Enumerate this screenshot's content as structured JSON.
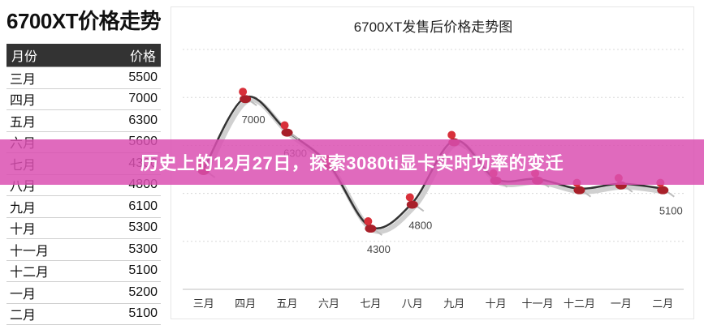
{
  "left": {
    "title": "6700XT价格走势",
    "table": {
      "headers": {
        "month": "月份",
        "price": "价格"
      },
      "rows": [
        {
          "month": "三月",
          "price": "5500"
        },
        {
          "month": "四月",
          "price": "7000"
        },
        {
          "month": "五月",
          "price": "6300"
        },
        {
          "month": "六月",
          "price": "5600"
        },
        {
          "month": "七月",
          "price": "4300"
        },
        {
          "month": "八月",
          "price": "4800"
        },
        {
          "month": "九月",
          "price": "6100"
        },
        {
          "month": "十月",
          "price": "5300"
        },
        {
          "month": "十一月",
          "price": "5300"
        },
        {
          "month": "十二月",
          "price": "5100"
        },
        {
          "month": "一月",
          "price": "5200"
        },
        {
          "month": "二月",
          "price": "5100"
        }
      ]
    }
  },
  "banner": {
    "text": "历史上的12月27日，探索3080ti显卡实时功率的变迁",
    "color": "#da50b2"
  },
  "chart_data": {
    "type": "line",
    "title": "6700XT发售后价格走势图",
    "categories": [
      "三月",
      "四月",
      "五月",
      "六月",
      "七月",
      "八月",
      "九月",
      "十月",
      "十一月",
      "十二月",
      "一月",
      "二月"
    ],
    "series": [
      {
        "values": [
          5500,
          7000,
          6300,
          5600,
          4300,
          4800,
          6100,
          5300,
          5300,
          5100,
          5200,
          5100
        ]
      }
    ],
    "data_labels": [
      {
        "index": 1,
        "text": "7000"
      },
      {
        "index": 2,
        "text": "6300"
      },
      {
        "index": 4,
        "text": "4300"
      },
      {
        "index": 5,
        "text": "4800"
      },
      {
        "index": 11,
        "text": "5100"
      }
    ],
    "ylim": [
      3000,
      8000
    ],
    "grid": true,
    "legend": "none",
    "line_color": "#333333",
    "marker_color": "#d8303a"
  }
}
